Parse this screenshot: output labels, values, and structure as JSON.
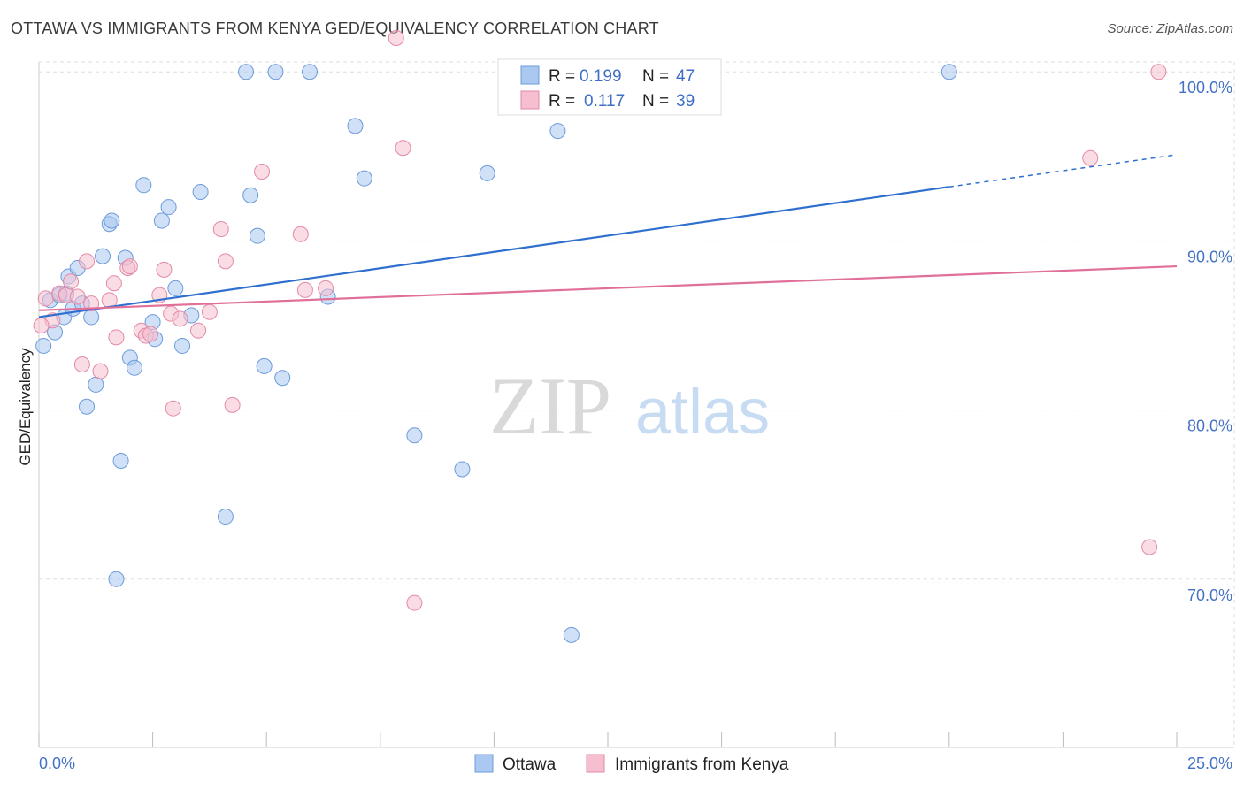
{
  "title": "OTTAWA VS IMMIGRANTS FROM KENYA GED/EQUIVALENCY CORRELATION CHART",
  "source": "Source: ZipAtlas.com",
  "watermark": {
    "zip": "ZIP",
    "atlas": "atlas"
  },
  "colors": {
    "ottawa_fill": "#aac8f0",
    "ottawa_stroke": "#6b9bdc",
    "ottawa_line": "#2f6fce",
    "kenya_fill": "#f6bfd0",
    "kenya_stroke": "#e48aa6",
    "kenya_line": "#e0709a",
    "grid": "#dddddd",
    "axis_text": "#4472c4"
  },
  "legend": {
    "ottawa": {
      "r_label": "R =",
      "r_value": "0.199",
      "n_label": "N =",
      "n_value": "47"
    },
    "kenya": {
      "r_label": "R =",
      "r_value": "0.117",
      "n_label": "N =",
      "n_value": "39"
    }
  },
  "chart_data": {
    "type": "scatter",
    "title": "OTTAWA VS IMMIGRANTS FROM KENYA GED/EQUIVALENCY CORRELATION CHART",
    "xlabel": "",
    "ylabel": "GED/Equivalency",
    "xlim": [
      0,
      25
    ],
    "ylim": [
      60,
      102
    ],
    "x_tick_labels": [
      "0.0%",
      "25.0%"
    ],
    "y_ticks": [
      70,
      80,
      90,
      100
    ],
    "y_tick_labels": [
      "70.0%",
      "80.0%",
      "90.0%",
      "100.0%"
    ],
    "grid": true,
    "legend_position": "top-center",
    "series": [
      {
        "name": "Ottawa",
        "trend": {
          "x0": 0,
          "y0": 85.5,
          "x1": 20,
          "y1": 93.2,
          "dashed_to_x": 25,
          "dashed_to_y": 95.1
        },
        "points": [
          [
            0.1,
            83.8
          ],
          [
            0.25,
            86.5
          ],
          [
            0.35,
            84.6
          ],
          [
            0.45,
            86.8
          ],
          [
            0.55,
            85.5
          ],
          [
            0.6,
            86.9
          ],
          [
            0.65,
            87.9
          ],
          [
            0.75,
            86.0
          ],
          [
            0.85,
            88.4
          ],
          [
            0.95,
            86.3
          ],
          [
            1.05,
            80.2
          ],
          [
            1.15,
            85.5
          ],
          [
            1.25,
            81.5
          ],
          [
            1.4,
            89.1
          ],
          [
            1.55,
            91.0
          ],
          [
            1.6,
            91.2
          ],
          [
            1.7,
            70.0
          ],
          [
            1.8,
            77.0
          ],
          [
            1.9,
            89.0
          ],
          [
            2.0,
            83.1
          ],
          [
            2.1,
            82.5
          ],
          [
            2.3,
            93.3
          ],
          [
            2.5,
            85.2
          ],
          [
            2.55,
            84.2
          ],
          [
            2.7,
            91.2
          ],
          [
            2.85,
            92.0
          ],
          [
            3.0,
            87.2
          ],
          [
            3.15,
            83.8
          ],
          [
            3.35,
            85.6
          ],
          [
            3.55,
            92.9
          ],
          [
            4.1,
            73.7
          ],
          [
            4.55,
            100.0
          ],
          [
            4.65,
            92.7
          ],
          [
            4.8,
            90.3
          ],
          [
            4.95,
            82.6
          ],
          [
            5.2,
            100.0
          ],
          [
            5.35,
            81.9
          ],
          [
            5.95,
            100.0
          ],
          [
            6.35,
            86.7
          ],
          [
            6.95,
            96.8
          ],
          [
            7.15,
            93.7
          ],
          [
            8.25,
            78.5
          ],
          [
            9.3,
            76.5
          ],
          [
            9.85,
            94.0
          ],
          [
            11.4,
            96.5
          ],
          [
            11.7,
            66.7
          ],
          [
            20.0,
            100.0
          ]
        ]
      },
      {
        "name": "Immigrants from Kenya",
        "trend": {
          "x0": 0,
          "y0": 85.9,
          "x1": 25,
          "y1": 88.5
        },
        "points": [
          [
            0.15,
            86.6
          ],
          [
            0.3,
            85.3
          ],
          [
            0.45,
            86.9
          ],
          [
            0.6,
            86.8
          ],
          [
            0.7,
            87.6
          ],
          [
            0.85,
            86.7
          ],
          [
            0.95,
            82.7
          ],
          [
            1.05,
            88.8
          ],
          [
            1.15,
            86.3
          ],
          [
            1.35,
            82.3
          ],
          [
            1.55,
            86.5
          ],
          [
            1.65,
            87.5
          ],
          [
            1.7,
            84.3
          ],
          [
            1.95,
            88.4
          ],
          [
            2.0,
            88.5
          ],
          [
            2.25,
            84.7
          ],
          [
            2.35,
            84.4
          ],
          [
            2.45,
            84.5
          ],
          [
            2.65,
            86.8
          ],
          [
            2.75,
            88.3
          ],
          [
            2.9,
            85.7
          ],
          [
            2.95,
            80.1
          ],
          [
            3.1,
            85.4
          ],
          [
            3.5,
            84.7
          ],
          [
            3.75,
            85.8
          ],
          [
            4.0,
            90.7
          ],
          [
            4.1,
            88.8
          ],
          [
            4.25,
            80.3
          ],
          [
            4.9,
            94.1
          ],
          [
            5.75,
            90.4
          ],
          [
            5.85,
            87.1
          ],
          [
            6.3,
            87.2
          ],
          [
            8.0,
            95.5
          ],
          [
            8.25,
            68.6
          ],
          [
            23.1,
            94.9
          ],
          [
            24.4,
            71.9
          ],
          [
            24.6,
            100.0
          ],
          [
            7.85,
            102.0
          ],
          [
            0.05,
            85.0
          ]
        ]
      }
    ]
  },
  "bottom_legend": {
    "ottawa": "Ottawa",
    "kenya": "Immigrants from Kenya"
  }
}
